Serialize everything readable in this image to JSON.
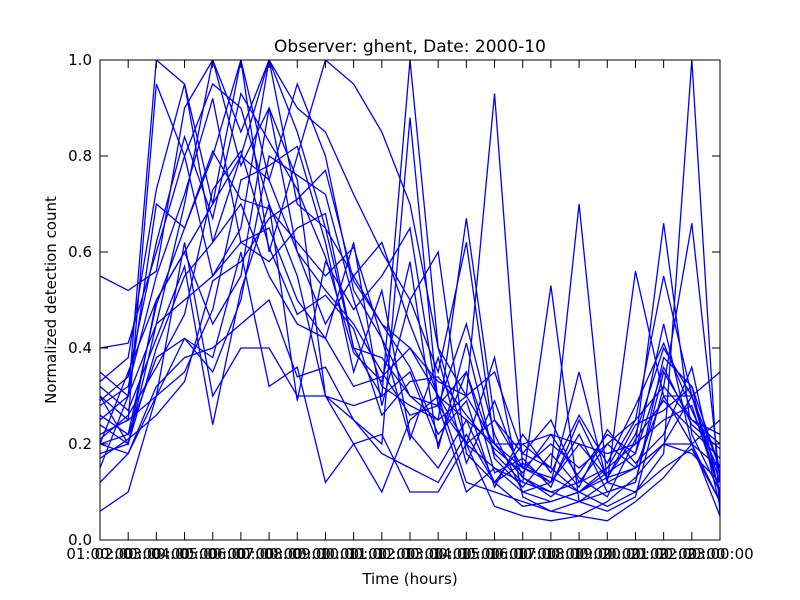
{
  "chart_data": {
    "type": "line",
    "title": "Observer: ghent, Date: 2000-10",
    "xlabel": "Time (hours)",
    "ylabel": "Normalized detection count",
    "x_tick_labels": [
      "01:00:00",
      "02:00:00",
      "03:00:00",
      "04:00:00",
      "05:00:00",
      "06:00:00",
      "07:00:00",
      "08:00:00",
      "09:00:00",
      "10:00:00",
      "11:00:00",
      "12:00:00",
      "13:00:00",
      "14:00:00",
      "15:00:00",
      "16:00:00",
      "17:00:00",
      "18:00:00",
      "19:00:00",
      "20:00:00",
      "21:00:00",
      "22:00:00",
      "23:00:00"
    ],
    "xlim": [
      1,
      23
    ],
    "ylim": [
      0,
      1.0
    ],
    "y_ticks": [
      "0.0",
      "0.2",
      "0.4",
      "0.6",
      "0.8",
      "1.0"
    ],
    "series_color": "#0000ff",
    "x": [
      1,
      2,
      3,
      4,
      5,
      6,
      7,
      8,
      9,
      10,
      11,
      12,
      13,
      14,
      15,
      16,
      17,
      18,
      19,
      20,
      21,
      22,
      23
    ],
    "series": [
      {
        "values": [
          0.55,
          0.52,
          0.56,
          0.9,
          1.0,
          0.85,
          1.0,
          0.7,
          0.65,
          0.55,
          0.45,
          0.4,
          0.33,
          0.3,
          0.2,
          0.15,
          0.13,
          0.1,
          0.13,
          0.15,
          0.2,
          0.3,
          0.35
        ]
      },
      {
        "values": [
          0.4,
          0.41,
          0.6,
          0.8,
          0.95,
          0.9,
          0.7,
          0.55,
          0.3,
          0.28,
          0.3,
          0.35,
          0.2,
          0.35,
          0.18,
          0.12,
          0.1,
          0.08,
          0.1,
          0.12,
          0.35,
          0.25,
          0.2
        ]
      },
      {
        "values": [
          0.35,
          0.3,
          1.0,
          0.95,
          0.7,
          1.0,
          0.6,
          0.8,
          1.0,
          0.95,
          0.85,
          0.7,
          0.4,
          0.2,
          0.25,
          0.15,
          0.2,
          0.15,
          0.2,
          0.15,
          0.3,
          0.3,
          0.15
        ]
      },
      {
        "values": [
          0.3,
          0.25,
          0.95,
          0.8,
          0.55,
          0.65,
          1.0,
          0.9,
          0.85,
          0.72,
          0.6,
          0.5,
          0.35,
          0.62,
          0.2,
          0.13,
          0.1,
          0.12,
          0.15,
          0.2,
          0.25,
          0.28,
          0.1
        ]
      },
      {
        "values": [
          0.25,
          0.3,
          0.7,
          0.65,
          0.8,
          1.0,
          0.75,
          0.95,
          0.8,
          0.52,
          0.42,
          0.3,
          0.25,
          0.3,
          0.93,
          0.15,
          0.12,
          0.2,
          0.13,
          0.22,
          0.4,
          0.3,
          0.12
        ]
      },
      {
        "values": [
          0.2,
          0.35,
          0.5,
          0.6,
          0.7,
          0.8,
          0.75,
          0.6,
          0.45,
          0.55,
          0.62,
          0.45,
          0.3,
          0.25,
          0.2,
          0.2,
          0.15,
          0.7,
          0.12,
          0.15,
          0.2,
          0.2,
          0.15
        ]
      },
      {
        "values": [
          0.33,
          0.38,
          0.73,
          0.95,
          0.62,
          0.8,
          1.0,
          0.85,
          0.65,
          0.4,
          0.3,
          1.0,
          0.4,
          0.3,
          0.35,
          0.18,
          0.25,
          0.12,
          0.2,
          0.25,
          0.55,
          0.3,
          0.1
        ]
      },
      {
        "values": [
          0.15,
          0.3,
          0.45,
          0.7,
          1.0,
          0.78,
          0.9,
          0.75,
          0.3,
          0.25,
          0.2,
          0.88,
          0.28,
          0.1,
          0.15,
          0.12,
          0.53,
          0.08,
          0.12,
          0.1,
          0.18,
          1.0,
          0.05
        ]
      },
      {
        "values": [
          0.18,
          0.2,
          0.45,
          0.5,
          0.55,
          0.62,
          0.58,
          0.65,
          0.68,
          0.4,
          0.38,
          0.3,
          0.28,
          0.2,
          0.15,
          0.1,
          0.12,
          0.35,
          0.12,
          0.56,
          0.3,
          0.2,
          0.08
        ]
      },
      {
        "values": [
          0.2,
          0.22,
          0.38,
          0.42,
          0.35,
          0.5,
          0.8,
          0.76,
          0.72,
          0.5,
          0.32,
          0.28,
          0.25,
          0.67,
          0.25,
          0.18,
          0.15,
          0.1,
          0.14,
          0.18,
          0.45,
          0.2,
          0.25
        ]
      },
      {
        "values": [
          0.22,
          0.25,
          0.3,
          0.35,
          0.48,
          0.75,
          0.78,
          0.82,
          0.62,
          0.35,
          0.52,
          0.22,
          0.15,
          0.25,
          0.12,
          0.2,
          0.22,
          0.2,
          0.18,
          0.2,
          0.66,
          0.22,
          0.1
        ]
      },
      {
        "values": [
          0.3,
          0.2,
          0.5,
          0.6,
          0.45,
          0.55,
          0.9,
          0.6,
          0.52,
          0.45,
          0.35,
          0.26,
          0.28,
          0.45,
          0.22,
          0.1,
          0.08,
          0.1,
          0.15,
          0.25,
          0.32,
          0.66,
          0.12
        ]
      },
      {
        "values": [
          0.28,
          0.32,
          0.55,
          0.72,
          0.92,
          0.62,
          0.65,
          0.5,
          0.42,
          0.62,
          0.28,
          0.5,
          0.6,
          0.18,
          0.12,
          0.16,
          0.12,
          0.22,
          0.1,
          0.12,
          0.38,
          0.32,
          0.15
        ]
      },
      {
        "values": [
          0.24,
          0.2,
          0.4,
          0.55,
          0.62,
          0.7,
          0.55,
          0.45,
          0.42,
          0.32,
          0.34,
          0.4,
          0.3,
          0.12,
          0.1,
          0.08,
          0.06,
          0.05,
          0.08,
          0.13,
          0.2,
          0.18,
          0.12
        ]
      },
      {
        "values": [
          0.12,
          0.18,
          0.32,
          0.38,
          0.4,
          0.45,
          0.5,
          0.34,
          0.36,
          0.25,
          0.18,
          0.15,
          0.12,
          0.22,
          0.12,
          0.07,
          0.08,
          0.1,
          0.07,
          0.1,
          0.15,
          0.19,
          0.08
        ]
      },
      {
        "values": [
          0.06,
          0.1,
          0.3,
          0.62,
          0.3,
          0.4,
          0.4,
          0.3,
          0.3,
          0.2,
          0.22,
          0.1,
          0.1,
          0.2,
          0.07,
          0.05,
          0.04,
          0.05,
          0.04,
          0.08,
          0.13,
          0.2,
          0.05
        ]
      },
      {
        "values": [
          0.2,
          0.18,
          0.3,
          0.42,
          0.38,
          0.6,
          0.32,
          0.36,
          0.12,
          0.2,
          0.1,
          0.25,
          0.3,
          0.2,
          0.38,
          0.09,
          0.06,
          0.08,
          0.06,
          0.09,
          0.32,
          0.25,
          0.22
        ]
      },
      {
        "values": [
          0.32,
          0.27,
          0.42,
          0.57,
          0.24,
          0.52,
          0.7,
          0.29,
          0.58,
          0.48,
          0.55,
          0.65,
          0.28,
          0.35,
          0.14,
          0.17,
          0.11,
          0.25,
          0.13,
          0.24,
          0.27,
          0.32,
          0.07
        ]
      },
      {
        "values": [
          0.26,
          0.22,
          0.49,
          0.65,
          0.81,
          0.71,
          0.69,
          0.62,
          0.55,
          0.61,
          0.42,
          0.21,
          0.38,
          0.16,
          0.29,
          0.13,
          0.09,
          0.14,
          0.22,
          0.18,
          0.36,
          0.24,
          0.19
        ]
      },
      {
        "values": [
          0.17,
          0.21,
          0.26,
          0.33,
          0.54,
          0.58,
          0.67,
          0.71,
          0.77,
          0.54,
          0.45,
          0.36,
          0.22,
          0.29,
          0.11,
          0.22,
          0.14,
          0.26,
          0.16,
          0.28,
          0.41,
          0.27,
          0.14
        ]
      },
      {
        "values": [
          0.29,
          0.34,
          0.62,
          0.84,
          0.67,
          0.93,
          0.83,
          0.73,
          0.59,
          0.39,
          0.33,
          0.58,
          0.19,
          0.41,
          0.17,
          0.11,
          0.18,
          0.11,
          0.23,
          0.16,
          0.22,
          0.36,
          0.09
        ]
      },
      {
        "values": [
          0.21,
          0.26,
          0.36,
          0.47,
          0.73,
          0.81,
          0.61,
          0.47,
          0.51,
          0.44,
          0.26,
          0.33,
          0.34,
          0.26,
          0.19,
          0.14,
          0.22,
          0.13,
          0.09,
          0.21,
          0.29,
          0.23,
          0.17
        ]
      }
    ]
  }
}
